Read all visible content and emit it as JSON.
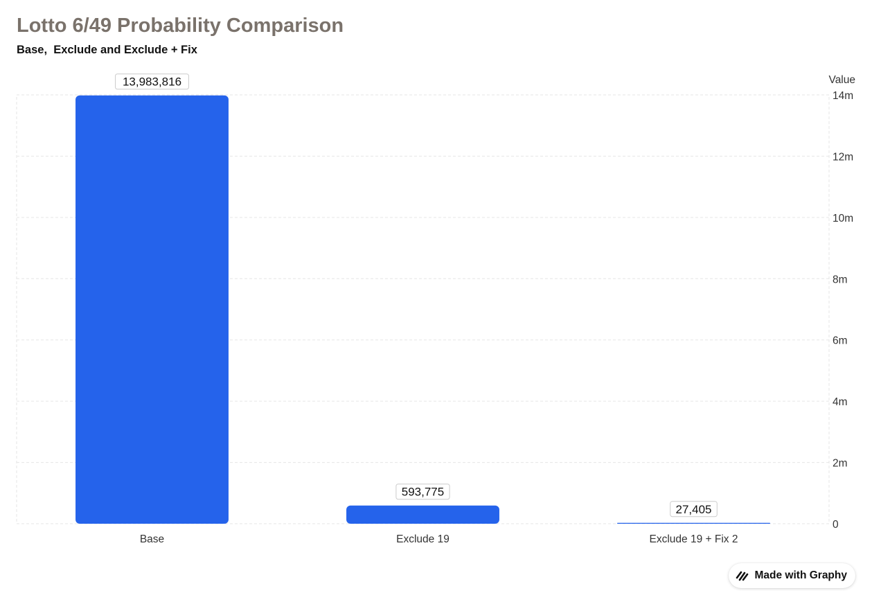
{
  "title": "Lotto 6/49 Probability Comparison",
  "subtitle": "Base,  Exclude and Exclude + Fix",
  "badge": {
    "label": "Made with Graphy",
    "icon": "graphy-logo-icon"
  },
  "colors": {
    "bar": "#2563eb",
    "title": "#7a726b",
    "grid": "#e6e6e6",
    "text": "#333333"
  },
  "chart_data": {
    "type": "bar",
    "categories": [
      "Base",
      "Exclude 19",
      "Exclude 19 + Fix 2"
    ],
    "values": [
      13983816,
      593775,
      27405
    ],
    "value_labels": [
      "13,983,816",
      "593,775",
      "27,405"
    ],
    "ylabel": "Value",
    "ylim": [
      0,
      14000000
    ],
    "y_ticks": [
      0,
      2000000,
      4000000,
      6000000,
      8000000,
      10000000,
      12000000,
      14000000
    ],
    "y_tick_labels": [
      "0",
      "2m",
      "4m",
      "6m",
      "8m",
      "10m",
      "12m",
      "14m"
    ],
    "y_axis_side": "right",
    "grid": true,
    "legend": "none"
  }
}
